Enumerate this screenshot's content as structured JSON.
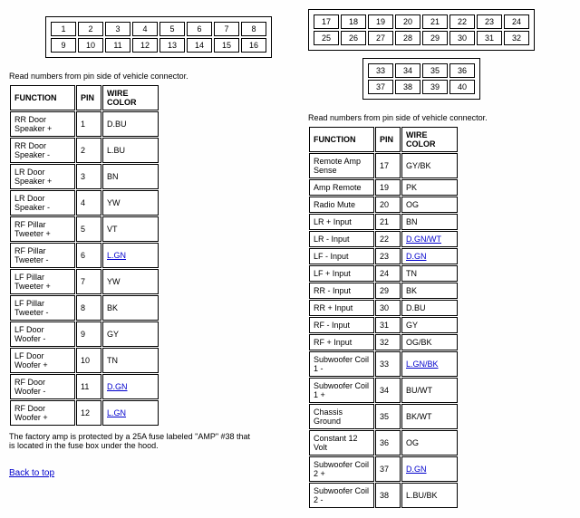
{
  "note": "Read numbers from pin side of vehicle connector.",
  "grid1": [
    [
      1,
      2,
      3,
      4,
      5,
      6,
      7,
      8
    ],
    [
      9,
      10,
      11,
      12,
      13,
      14,
      15,
      16
    ]
  ],
  "grid2": [
    [
      17,
      18,
      19,
      20,
      21,
      22,
      23,
      24
    ],
    [
      25,
      26,
      27,
      28,
      29,
      30,
      31,
      32
    ]
  ],
  "grid3": [
    [
      33,
      34,
      35,
      36
    ],
    [
      37,
      38,
      39,
      40
    ]
  ],
  "headers": {
    "func": "FUNCTION",
    "pin": "PIN",
    "wire": "WIRE COLOR"
  },
  "table1": [
    {
      "f": "RR Door Speaker +",
      "p": "1",
      "w": "D.BU",
      "link": false
    },
    {
      "f": "RR Door Speaker -",
      "p": "2",
      "w": "L.BU",
      "link": false
    },
    {
      "f": "LR Door Speaker +",
      "p": "3",
      "w": "BN",
      "link": false
    },
    {
      "f": "LR Door Speaker -",
      "p": "4",
      "w": "YW",
      "link": false
    },
    {
      "f": "RF Pillar Tweeter +",
      "p": "5",
      "w": "VT",
      "link": false
    },
    {
      "f": "RF Pillar Tweeter -",
      "p": "6",
      "w": "L.GN",
      "link": true
    },
    {
      "f": "LF Pillar Tweeter +",
      "p": "7",
      "w": "YW",
      "link": false
    },
    {
      "f": "LF Pillar Tweeter -",
      "p": "8",
      "w": "BK",
      "link": false
    },
    {
      "f": "LF Door Woofer -",
      "p": "9",
      "w": "GY",
      "link": false
    },
    {
      "f": "LF Door Woofer +",
      "p": "10",
      "w": "TN",
      "link": false
    },
    {
      "f": "RF Door Woofer -",
      "p": "11",
      "w": "D.GN",
      "link": true
    },
    {
      "f": "RF Door Woofer +",
      "p": "12",
      "w": "L.GN",
      "link": true
    }
  ],
  "table2": [
    {
      "f": "Remote Amp Sense",
      "p": "17",
      "w": "GY/BK",
      "link": false
    },
    {
      "f": "Amp Remote",
      "p": "19",
      "w": "PK",
      "link": false
    },
    {
      "f": "Radio Mute",
      "p": "20",
      "w": "OG",
      "link": false
    },
    {
      "f": "LR + Input",
      "p": "21",
      "w": "BN",
      "link": false
    },
    {
      "f": "LR - Input",
      "p": "22",
      "w": "D.GN/WT",
      "link": true
    },
    {
      "f": "LF - Input",
      "p": "23",
      "w": "D.GN",
      "link": true
    },
    {
      "f": "LF + Input",
      "p": "24",
      "w": "TN",
      "link": false
    },
    {
      "f": "RR - Input",
      "p": "29",
      "w": "BK",
      "link": false
    },
    {
      "f": "RR + Input",
      "p": "30",
      "w": "D.BU",
      "link": false
    },
    {
      "f": "RF - Input",
      "p": "31",
      "w": "GY",
      "link": false
    },
    {
      "f": "RF + Input",
      "p": "32",
      "w": "OG/BK",
      "link": false
    },
    {
      "f": "Subwoofer Coil 1 -",
      "p": "33",
      "w": "L.GN/BK",
      "link": true
    },
    {
      "f": "Subwoofer Coil 1 +",
      "p": "34",
      "w": "BU/WT",
      "link": false
    },
    {
      "f": "Chassis Ground",
      "p": "35",
      "w": "BK/WT",
      "link": false
    },
    {
      "f": "Constant 12 Volt",
      "p": "36",
      "w": "OG",
      "link": false
    },
    {
      "f": "Subwoofer Coil 2 +",
      "p": "37",
      "w": "D.GN",
      "link": true
    },
    {
      "f": "Subwoofer Coil 2 -",
      "p": "38",
      "w": "L.BU/BK",
      "link": false
    }
  ],
  "footnote": "The factory amp is protected by a 25A fuse labeled \"AMP\" #38 that is located in the fuse box under the hood.",
  "backlink": "Back to top"
}
